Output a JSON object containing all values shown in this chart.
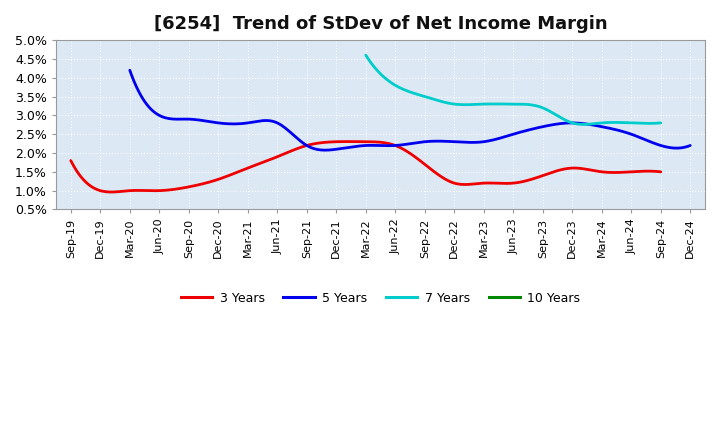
{
  "title": "[6254]  Trend of StDev of Net Income Margin",
  "background_color": "#ffffff",
  "plot_background_color": "#dce9f5",
  "grid_color": "#ffffff",
  "ylim": [
    0.005,
    0.05
  ],
  "yticks": [
    0.005,
    0.01,
    0.015,
    0.02,
    0.025,
    0.03,
    0.035,
    0.04,
    0.045,
    0.05
  ],
  "ytick_labels": [
    "0.5%",
    "1.0%",
    "1.5%",
    "2.0%",
    "2.5%",
    "3.0%",
    "3.5%",
    "4.0%",
    "4.5%",
    "5.0%"
  ],
  "xtick_labels": [
    "Sep-19",
    "Dec-19",
    "Mar-20",
    "Jun-20",
    "Sep-20",
    "Dec-20",
    "Mar-21",
    "Jun-21",
    "Sep-21",
    "Dec-21",
    "Mar-22",
    "Jun-22",
    "Sep-22",
    "Dec-22",
    "Mar-23",
    "Jun-23",
    "Sep-23",
    "Dec-23",
    "Mar-24",
    "Jun-24",
    "Sep-24",
    "Dec-24"
  ],
  "series": {
    "3 Years": {
      "color": "#ee0000",
      "data": [
        0.018,
        0.01,
        0.01,
        0.01,
        0.011,
        0.013,
        0.016,
        0.019,
        0.022,
        0.023,
        0.023,
        0.022,
        0.017,
        0.012,
        0.012,
        0.012,
        0.014,
        0.016,
        0.015,
        0.015,
        0.015,
        null
      ]
    },
    "5 Years": {
      "color": "#0000ee",
      "data": [
        null,
        null,
        0.042,
        0.03,
        0.029,
        0.028,
        0.028,
        0.028,
        0.022,
        0.021,
        0.022,
        0.022,
        0.023,
        0.023,
        0.023,
        0.025,
        0.027,
        0.028,
        0.027,
        0.025,
        0.022,
        0.022
      ]
    },
    "7 Years": {
      "color": "#00cccc",
      "data": [
        null,
        null,
        null,
        null,
        null,
        null,
        null,
        null,
        null,
        null,
        0.046,
        0.038,
        0.035,
        0.033,
        0.033,
        0.033,
        0.032,
        0.028,
        0.028,
        0.028,
        0.028,
        null
      ]
    },
    "10 Years": {
      "color": "#008800",
      "data": [
        null,
        null,
        null,
        null,
        null,
        null,
        null,
        null,
        null,
        null,
        null,
        null,
        null,
        null,
        null,
        null,
        null,
        null,
        null,
        null,
        null,
        null
      ]
    }
  },
  "legend": {
    "3 Years": "#ee0000",
    "5 Years": "#0000ee",
    "7 Years": "#00cccc",
    "10 Years": "#008800"
  },
  "title_fontsize": 13,
  "tick_fontsize": 9,
  "line_width": 2.0
}
